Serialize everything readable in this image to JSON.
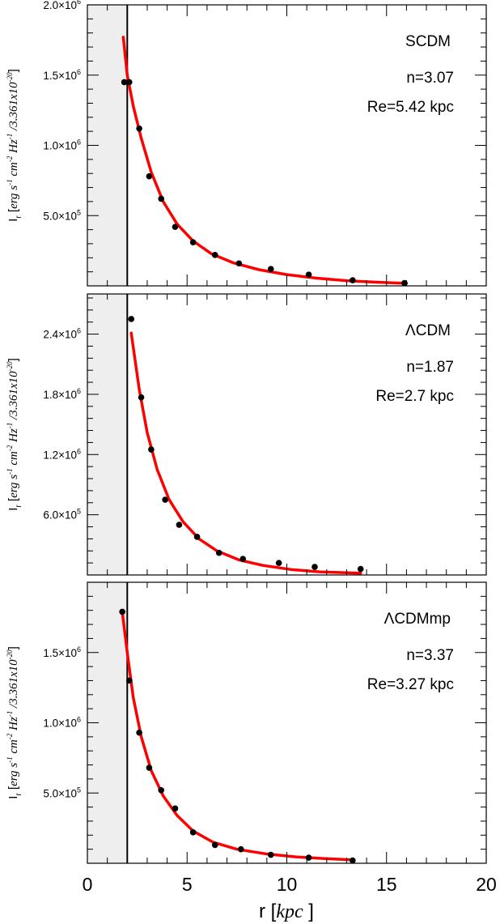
{
  "chart_data": [
    {
      "type": "scatter",
      "panel_label": "SCDM",
      "n_label": "n=3.07",
      "re_label": "Re=5.42 kpc",
      "ylabel": "I_r [erg s^-1 cm^-2 Hz^-1 /3.361x10^-20]",
      "ylabel_parts": [
        "I",
        "r",
        " [",
        "erg s",
        "-1",
        " cm",
        "-2",
        " Hz",
        "-1",
        " /3.361x10",
        "-20",
        "]"
      ],
      "xlim": [
        0,
        20
      ],
      "ylim": [
        0,
        2000000
      ],
      "yticks": [
        {
          "value": 500000,
          "mantissa": "5.0×10",
          "exp": "5"
        },
        {
          "value": 1000000,
          "mantissa": "1.0×10",
          "exp": "6"
        },
        {
          "value": 1500000,
          "mantissa": "1.5×10",
          "exp": "6"
        },
        {
          "value": 2000000,
          "mantissa": "2.0×10",
          "exp": "6"
        }
      ],
      "shaded_region": [
        0,
        2.0
      ],
      "vline_x": 2.0,
      "points": [
        [
          1.85,
          1450000
        ],
        [
          2.1,
          1450000
        ],
        [
          2.6,
          1120000
        ],
        [
          3.1,
          780000
        ],
        [
          3.7,
          620000
        ],
        [
          4.4,
          420000
        ],
        [
          5.3,
          310000
        ],
        [
          6.4,
          220000
        ],
        [
          7.6,
          160000
        ],
        [
          9.2,
          120000
        ],
        [
          11.1,
          80000
        ],
        [
          13.3,
          40000
        ],
        [
          15.9,
          20000
        ]
      ],
      "fit": [
        [
          1.8,
          1770000
        ],
        [
          2.0,
          1500000
        ],
        [
          2.3,
          1280000
        ],
        [
          2.7,
          1050000
        ],
        [
          3.2,
          810000
        ],
        [
          3.8,
          600000
        ],
        [
          4.5,
          440000
        ],
        [
          5.3,
          320000
        ],
        [
          6.2,
          230000
        ],
        [
          7.3,
          165000
        ],
        [
          8.6,
          115000
        ],
        [
          10.0,
          80000
        ],
        [
          11.5,
          55000
        ],
        [
          13.0,
          37000
        ],
        [
          14.5,
          26000
        ],
        [
          16.0,
          18000
        ]
      ]
    },
    {
      "type": "scatter",
      "panel_label": "ΛCDM",
      "n_label": "n=1.87",
      "re_label": "Re=2.7 kpc",
      "ylabel": "I_r [erg s^-1 cm^-2 Hz^-1 /3.361x10^-20]",
      "ylabel_parts": [
        "I",
        "r",
        " [",
        "erg s",
        "-1",
        " cm",
        "-2",
        " Hz",
        "-1",
        " /3.361x10",
        "-20",
        "]"
      ],
      "xlim": [
        0,
        20
      ],
      "ylim": [
        0,
        2800000
      ],
      "yticks": [
        {
          "value": 600000,
          "mantissa": "6.0×10",
          "exp": "5"
        },
        {
          "value": 1200000,
          "mantissa": "1.2×10",
          "exp": "6"
        },
        {
          "value": 1800000,
          "mantissa": "1.8×10",
          "exp": "6"
        },
        {
          "value": 2400000,
          "mantissa": "2.4×10",
          "exp": "6"
        }
      ],
      "shaded_region": [
        0,
        2.0
      ],
      "vline_x": 2.0,
      "points": [
        [
          2.2,
          2550000
        ],
        [
          2.7,
          1770000
        ],
        [
          3.2,
          1250000
        ],
        [
          3.9,
          750000
        ],
        [
          4.6,
          500000
        ],
        [
          5.5,
          380000
        ],
        [
          6.6,
          220000
        ],
        [
          7.8,
          160000
        ],
        [
          9.6,
          120000
        ],
        [
          11.4,
          80000
        ],
        [
          13.7,
          60000
        ]
      ],
      "fit": [
        [
          2.2,
          2410000
        ],
        [
          2.6,
          1850000
        ],
        [
          3.0,
          1420000
        ],
        [
          3.5,
          1050000
        ],
        [
          4.1,
          750000
        ],
        [
          4.8,
          530000
        ],
        [
          5.6,
          360000
        ],
        [
          6.5,
          240000
        ],
        [
          7.6,
          150000
        ],
        [
          8.8,
          95000
        ],
        [
          10.2,
          55000
        ],
        [
          11.7,
          30000
        ],
        [
          13.7,
          18000
        ]
      ]
    },
    {
      "type": "scatter",
      "panel_label": "ΛCDMmp",
      "n_label": "n=3.37",
      "re_label": "Re=3.27 kpc",
      "ylabel": "I_r [erg s^-1 cm^-2 Hz^-1 /3.361x10^-20]",
      "ylabel_parts": [
        "I",
        "r",
        " [",
        "erg s",
        "-1",
        " cm",
        "-2",
        " Hz",
        "-1",
        " /3.361x10",
        "-20",
        "]"
      ],
      "xlim": [
        0,
        20
      ],
      "ylim": [
        0,
        2000000
      ],
      "yticks": [
        {
          "value": 500000,
          "mantissa": "5.0×10",
          "exp": "5"
        },
        {
          "value": 1000000,
          "mantissa": "1.0×10",
          "exp": "6"
        },
        {
          "value": 1500000,
          "mantissa": "1.5×10",
          "exp": "6"
        }
      ],
      "shaded_region": [
        0,
        2.0
      ],
      "vline_x": 2.0,
      "points": [
        [
          1.75,
          1790000
        ],
        [
          2.1,
          1300000
        ],
        [
          2.6,
          930000
        ],
        [
          3.1,
          680000
        ],
        [
          3.7,
          520000
        ],
        [
          4.4,
          390000
        ],
        [
          5.3,
          220000
        ],
        [
          6.4,
          130000
        ],
        [
          7.7,
          100000
        ],
        [
          9.2,
          60000
        ],
        [
          11.1,
          40000
        ],
        [
          13.3,
          20000
        ]
      ],
      "fit": [
        [
          1.75,
          1790000
        ],
        [
          2.0,
          1500000
        ],
        [
          2.3,
          1180000
        ],
        [
          2.7,
          900000
        ],
        [
          3.2,
          660000
        ],
        [
          3.8,
          480000
        ],
        [
          4.5,
          340000
        ],
        [
          5.3,
          230000
        ],
        [
          6.3,
          150000
        ],
        [
          7.5,
          100000
        ],
        [
          8.9,
          68000
        ],
        [
          10.5,
          45000
        ],
        [
          12.0,
          32000
        ],
        [
          13.3,
          24000
        ]
      ]
    }
  ],
  "x_axis": {
    "ticks": [
      "0",
      "5",
      "10",
      "15",
      "20"
    ],
    "label_main": "r [",
    "label_unit": "kpc",
    "label_end": " ]"
  },
  "colors": {
    "points": "#000000",
    "fit": "#ff0000",
    "shade": "#eeeeee",
    "frame": "#000000"
  }
}
